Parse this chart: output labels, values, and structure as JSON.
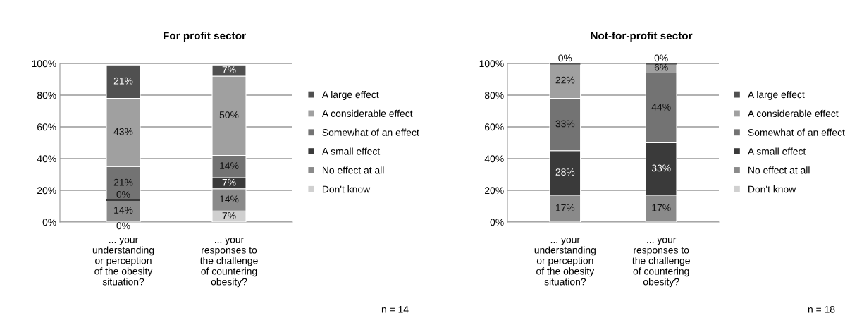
{
  "chart_data": [
    {
      "type": "bar",
      "title": "For profit sector",
      "stacked": true,
      "categories": [
        "... your\nunderstanding\nor perception\nof the obesity\nsituation?",
        "... your\nresponses to\nthe challenge\nof countering\nobesity?"
      ],
      "series": [
        {
          "name": "Don't know",
          "color": "#d0d0d0",
          "values": [
            0,
            7
          ],
          "value_labels": [
            "0%",
            "7%"
          ]
        },
        {
          "name": "No effect at all",
          "color": "#8a8a8a",
          "values": [
            14,
            14
          ],
          "value_labels": [
            "14%",
            "14%"
          ]
        },
        {
          "name": "A small effect",
          "color": "#3a3a3a",
          "values": [
            0,
            7
          ],
          "value_labels": [
            "0%",
            "7%"
          ]
        },
        {
          "name": "Somewhat of an effect",
          "color": "#737373",
          "values": [
            21,
            14
          ],
          "value_labels": [
            "21%",
            "14%"
          ]
        },
        {
          "name": "A considerable effect",
          "color": "#a0a0a0",
          "values": [
            43,
            50
          ],
          "value_labels": [
            "43%",
            "50%"
          ]
        },
        {
          "name": "A large effect",
          "color": "#505050",
          "values": [
            21,
            7
          ],
          "value_labels": [
            "21%",
            "7%"
          ]
        }
      ],
      "ylim": [
        0,
        100
      ],
      "yticks": [
        {
          "value": 0,
          "label": "0%"
        },
        {
          "value": 20,
          "label": "20%"
        },
        {
          "value": 40,
          "label": "40%"
        },
        {
          "value": 60,
          "label": "60%"
        },
        {
          "value": 80,
          "label": "80%"
        },
        {
          "value": 100,
          "label": "100%"
        }
      ],
      "grid": "y",
      "legend": "right",
      "annotations": [
        "n = 14"
      ]
    },
    {
      "type": "bar",
      "title": "Not-for-profit sector",
      "stacked": true,
      "categories": [
        "... your\nunderstanding\nor perception\nof the obesity\nsituation?",
        "... your\nresponses to\nthe challenge\nof countering\nobesity?"
      ],
      "series": [
        {
          "name": "Don't know",
          "color": "#d0d0d0",
          "values": [
            null,
            null
          ],
          "value_labels": [
            null,
            null
          ]
        },
        {
          "name": "No effect at all",
          "color": "#8a8a8a",
          "values": [
            17,
            17
          ],
          "value_labels": [
            "17%",
            "17%"
          ]
        },
        {
          "name": "A small effect",
          "color": "#3a3a3a",
          "values": [
            28,
            33
          ],
          "value_labels": [
            "28%",
            "33%"
          ]
        },
        {
          "name": "Somewhat of an effect",
          "color": "#737373",
          "values": [
            33,
            44
          ],
          "value_labels": [
            "33%",
            "44%"
          ]
        },
        {
          "name": "A considerable effect",
          "color": "#a0a0a0",
          "values": [
            22,
            6
          ],
          "value_labels": [
            "22%",
            "6%"
          ]
        },
        {
          "name": "A large effect",
          "color": "#505050",
          "values": [
            0,
            0
          ],
          "value_labels": [
            "0%",
            "0%"
          ]
        }
      ],
      "ylim": [
        0,
        100
      ],
      "yticks": [
        {
          "value": 0,
          "label": "0%"
        },
        {
          "value": 20,
          "label": "20%"
        },
        {
          "value": 40,
          "label": "40%"
        },
        {
          "value": 60,
          "label": "60%"
        },
        {
          "value": 80,
          "label": "80%"
        },
        {
          "value": 100,
          "label": "100%"
        }
      ],
      "grid": "y",
      "legend": "right",
      "annotations": [
        "n = 18"
      ]
    }
  ]
}
